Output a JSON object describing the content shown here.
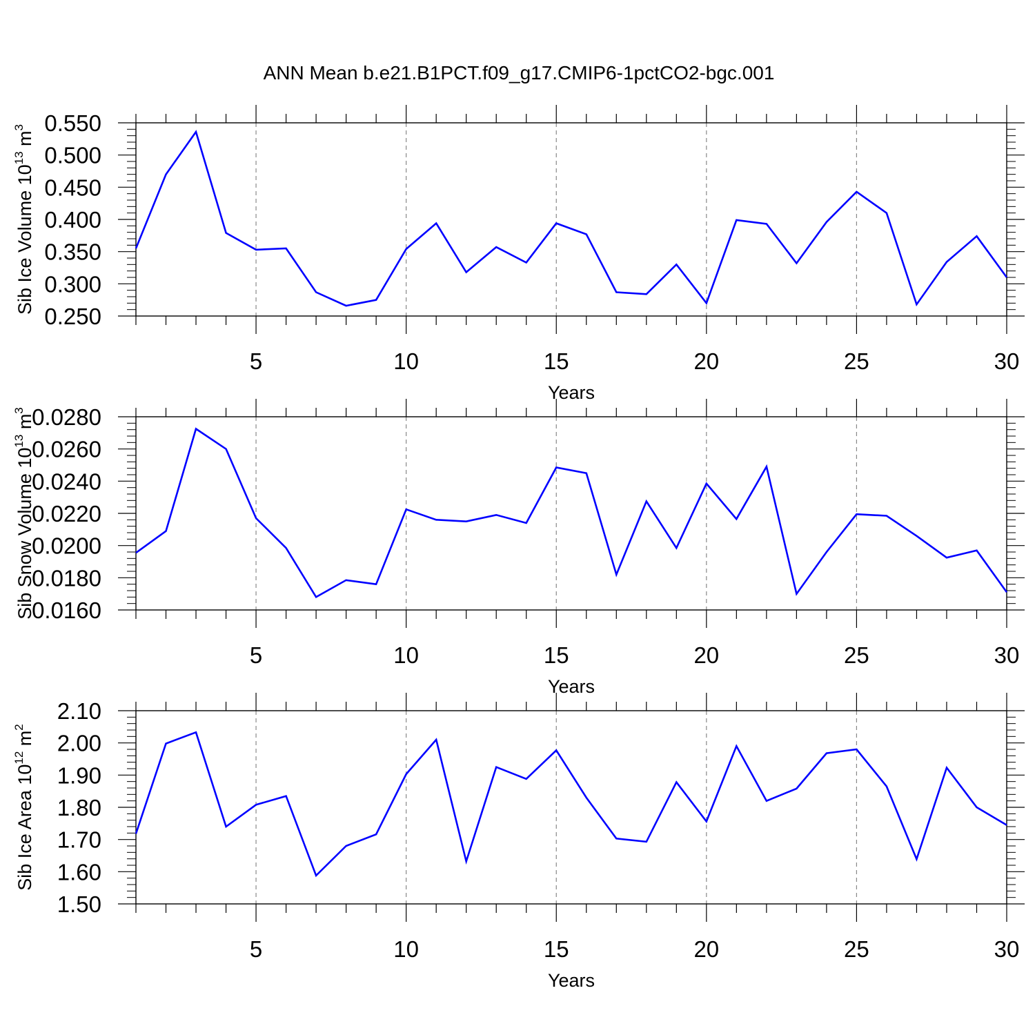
{
  "title": "ANN Mean b.e21.B1PCT.f09_g17.CMIP6-1pctCO2-bgc.001",
  "colors": {
    "line": "#0000ff",
    "axes": "#000000",
    "grid": "#888888"
  },
  "chart_data": [
    {
      "type": "line",
      "ylabel_main": "Sib Ice Volume 10",
      "ylabel_exp": "13",
      "ylabel_unit": " m",
      "ylabel_unit_exp": "3",
      "xlabel": "Years",
      "xlim": [
        1,
        30
      ],
      "ylim": [
        0.25,
        0.55
      ],
      "yticks": [
        "0.250",
        "0.300",
        "0.350",
        "0.400",
        "0.450",
        "0.500",
        "0.550"
      ],
      "xticks": [
        "5",
        "10",
        "15",
        "20",
        "25",
        "30"
      ],
      "series": [
        {
          "name": "Sib Ice Volume",
          "x": [
            1,
            2,
            3,
            4,
            5,
            6,
            7,
            8,
            9,
            10,
            11,
            12,
            13,
            14,
            15,
            16,
            17,
            18,
            19,
            20,
            21,
            22,
            23,
            24,
            25,
            26,
            27,
            28,
            29,
            30
          ],
          "values": [
            0.355,
            0.47,
            0.536,
            0.379,
            0.353,
            0.355,
            0.287,
            0.266,
            0.275,
            0.354,
            0.394,
            0.318,
            0.357,
            0.333,
            0.394,
            0.377,
            0.287,
            0.284,
            0.33,
            0.27,
            0.399,
            0.393,
            0.332,
            0.396,
            0.443,
            0.41,
            0.268,
            0.334,
            0.374,
            0.31
          ]
        }
      ]
    },
    {
      "type": "line",
      "ylabel_main": "Sib Snow Volume 10",
      "ylabel_exp": "13",
      "ylabel_unit": " m",
      "ylabel_unit_exp": "3",
      "xlabel": "Years",
      "xlim": [
        1,
        30
      ],
      "ylim": [
        0.016,
        0.028
      ],
      "yticks": [
        "0.0160",
        "0.0180",
        "0.0200",
        "0.0220",
        "0.0240",
        "0.0260",
        "0.0280"
      ],
      "xticks": [
        "5",
        "10",
        "15",
        "20",
        "25",
        "30"
      ],
      "series": [
        {
          "name": "Sib Snow Volume",
          "x": [
            1,
            2,
            3,
            4,
            5,
            6,
            7,
            8,
            9,
            10,
            11,
            12,
            13,
            14,
            15,
            16,
            17,
            18,
            19,
            20,
            21,
            22,
            23,
            24,
            25,
            26,
            27,
            28,
            29,
            30
          ],
          "values": [
            0.01955,
            0.0209,
            0.02725,
            0.026,
            0.0217,
            0.01985,
            0.0168,
            0.01785,
            0.0176,
            0.02225,
            0.0216,
            0.0215,
            0.0219,
            0.0214,
            0.02485,
            0.0245,
            0.0182,
            0.02275,
            0.01985,
            0.02385,
            0.02165,
            0.0249,
            0.017,
            0.0196,
            0.02195,
            0.02185,
            0.0206,
            0.01925,
            0.0197,
            0.0171
          ]
        }
      ]
    },
    {
      "type": "line",
      "ylabel_main": "Sib Ice Area 10",
      "ylabel_exp": "12",
      "ylabel_unit": " m",
      "ylabel_unit_exp": "2",
      "xlabel": "Years",
      "xlim": [
        1,
        30
      ],
      "ylim": [
        1.5,
        2.1
      ],
      "yticks": [
        "1.50",
        "1.60",
        "1.70",
        "1.80",
        "1.90",
        "2.00",
        "2.10"
      ],
      "xticks": [
        "5",
        "10",
        "15",
        "20",
        "25",
        "30"
      ],
      "series": [
        {
          "name": "Sib Ice Area",
          "x": [
            1,
            2,
            3,
            4,
            5,
            6,
            7,
            8,
            9,
            10,
            11,
            12,
            13,
            14,
            15,
            16,
            17,
            18,
            19,
            20,
            21,
            22,
            23,
            24,
            25,
            26,
            27,
            28,
            29,
            30
          ],
          "values": [
            1.718,
            1.998,
            2.033,
            1.74,
            1.808,
            1.835,
            1.588,
            1.68,
            1.716,
            1.903,
            2.01,
            1.632,
            1.925,
            1.888,
            1.977,
            1.83,
            1.703,
            1.693,
            1.878,
            1.756,
            1.99,
            1.82,
            1.858,
            1.968,
            1.98,
            1.865,
            1.639,
            1.923,
            1.8,
            1.745
          ]
        }
      ]
    }
  ]
}
